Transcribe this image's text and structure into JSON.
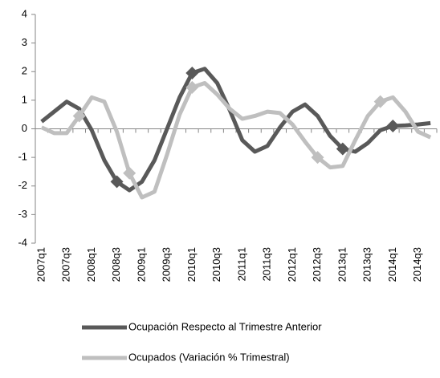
{
  "chart_data": {
    "type": "line",
    "categories": [
      "2007q1",
      null,
      "2007q3",
      null,
      "2008q1",
      null,
      "2008q3",
      null,
      "2009q1",
      null,
      "2009q3",
      null,
      "2010q1",
      null,
      "2010q3",
      null,
      "2011q1",
      null,
      "2011q3",
      null,
      "2012q1",
      null,
      "2012q3",
      null,
      "2013q1",
      null,
      "2013q3",
      null,
      "2014q1",
      null,
      "2014q3",
      null
    ],
    "series": [
      {
        "name": "Ocupación Respecto al Trimestre Anterior",
        "color": "#595959",
        "values": [
          0.25,
          0.6,
          0.95,
          0.7,
          -0.05,
          -1.1,
          -1.85,
          -2.15,
          -1.85,
          -1.1,
          0,
          1.1,
          1.95,
          2.1,
          1.6,
          0.65,
          -0.4,
          -0.8,
          -0.6,
          0.05,
          0.6,
          0.85,
          0.45,
          -0.25,
          -0.7,
          -0.8,
          -0.5,
          -0.05,
          0.1,
          0.12,
          0.15,
          0.2
        ],
        "marker_indices": [
          6,
          12,
          24,
          28
        ]
      },
      {
        "name": "Ocupados (Variación % Trimestral)",
        "color": "#bfbfbf",
        "values": [
          0.05,
          -0.15,
          -0.15,
          0.45,
          1.1,
          0.95,
          -0.1,
          -1.55,
          -2.4,
          -2.2,
          -0.9,
          0.5,
          1.45,
          1.6,
          1.2,
          0.7,
          0.35,
          0.45,
          0.6,
          0.55,
          0.15,
          -0.45,
          -1.0,
          -1.35,
          -1.3,
          -0.4,
          0.45,
          0.95,
          1.1,
          0.6,
          -0.1,
          -0.3
        ],
        "marker_indices": [
          3,
          7,
          12,
          22,
          27
        ]
      }
    ],
    "ylim": [
      -4,
      4
    ],
    "yticks": [
      -4,
      -3,
      -2,
      -1,
      0,
      1,
      2,
      3,
      4
    ]
  }
}
